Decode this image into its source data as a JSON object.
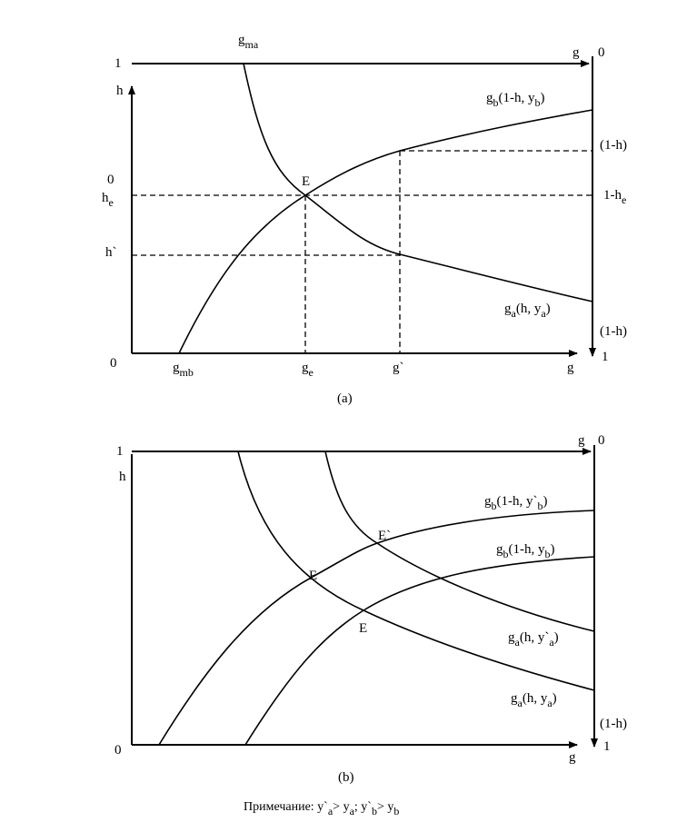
{
  "panel_a": {
    "labels": [
      [
        "g",
        "ma"
      ],
      [
        "1"
      ],
      [
        "g"
      ],
      [
        "0"
      ],
      [
        "h"
      ],
      [
        "g",
        "b",
        "(1-h, y",
        "b",
        ")"
      ],
      [
        "(1-h)"
      ],
      [
        "0"
      ],
      [
        "h",
        "e"
      ],
      [
        "E"
      ],
      [
        "1-h",
        "e"
      ],
      [
        "h`"
      ],
      [
        "g",
        "a",
        "(h, y",
        "a",
        ")"
      ],
      [
        "(1-h)"
      ],
      [
        "0"
      ],
      [
        "g",
        "mb"
      ],
      [
        "g",
        "e"
      ],
      [
        "g`"
      ],
      [
        "g"
      ],
      [
        "1"
      ],
      [
        "(a)"
      ]
    ]
  },
  "panel_b": {
    "labels": [
      [
        "1"
      ],
      [
        "g"
      ],
      [
        "0"
      ],
      [
        "h"
      ],
      [
        "g",
        "b",
        "(1-h, y`",
        "b",
        ")"
      ],
      [
        "E`"
      ],
      [
        "g",
        "b",
        "(1-h, y",
        "b",
        ")"
      ],
      [
        "E"
      ],
      [
        "g",
        "a",
        "(h, y`",
        "a",
        ")"
      ],
      [
        "E"
      ],
      [
        "g",
        "a",
        "(h, y",
        "a",
        ")"
      ],
      [
        "(1-h)"
      ],
      [
        "0"
      ],
      [
        "g"
      ],
      [
        "1"
      ],
      [
        "(b)"
      ]
    ]
  },
  "note": [
    "Примечание: y`",
    "a",
    "> y",
    "a",
    "; y`",
    "b",
    "> y",
    "b"
  ]
}
